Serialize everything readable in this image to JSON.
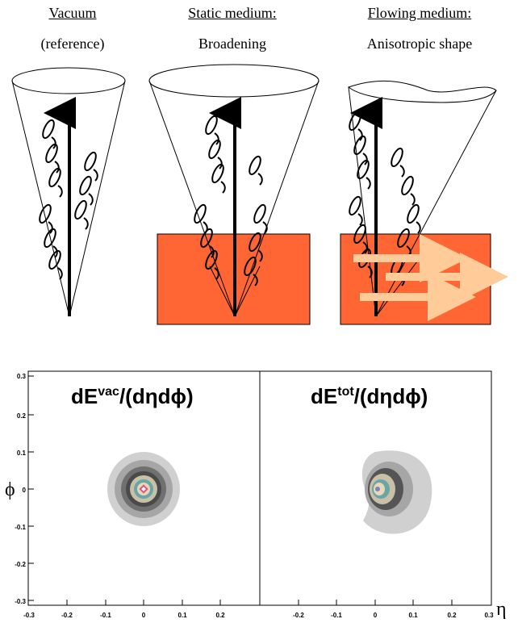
{
  "panels": [
    {
      "title": "Vacuum",
      "subtitle": "(reference)"
    },
    {
      "title": "Static medium:",
      "subtitle": "Broadening"
    },
    {
      "title": "Flowing medium:",
      "subtitle": "Anisotropic shape"
    }
  ],
  "colors": {
    "medium": "#ff6633",
    "flow_arrow": "#ffcc99"
  },
  "plots": {
    "left_title_base": "dE",
    "left_title_sup": "vac",
    "left_title_rest": "/(dηdϕ)",
    "right_title_base": "dE",
    "right_title_sup": "tot",
    "right_title_rest": "/(dηdϕ)",
    "y_axis_label": "ϕ",
    "x_axis_label": "η",
    "y_ticks": [
      "0.3",
      "0.2",
      "0.1",
      "0",
      "-0.1",
      "-0.2",
      "-0.3"
    ],
    "x_ticks_left": [
      "-0.3",
      "-0.2",
      "-0.1",
      "0",
      "0.1",
      "0.2"
    ],
    "x_ticks_right": [
      "-0.2",
      "-0.1",
      "0",
      "0.1",
      "0.2",
      "0.3"
    ]
  }
}
